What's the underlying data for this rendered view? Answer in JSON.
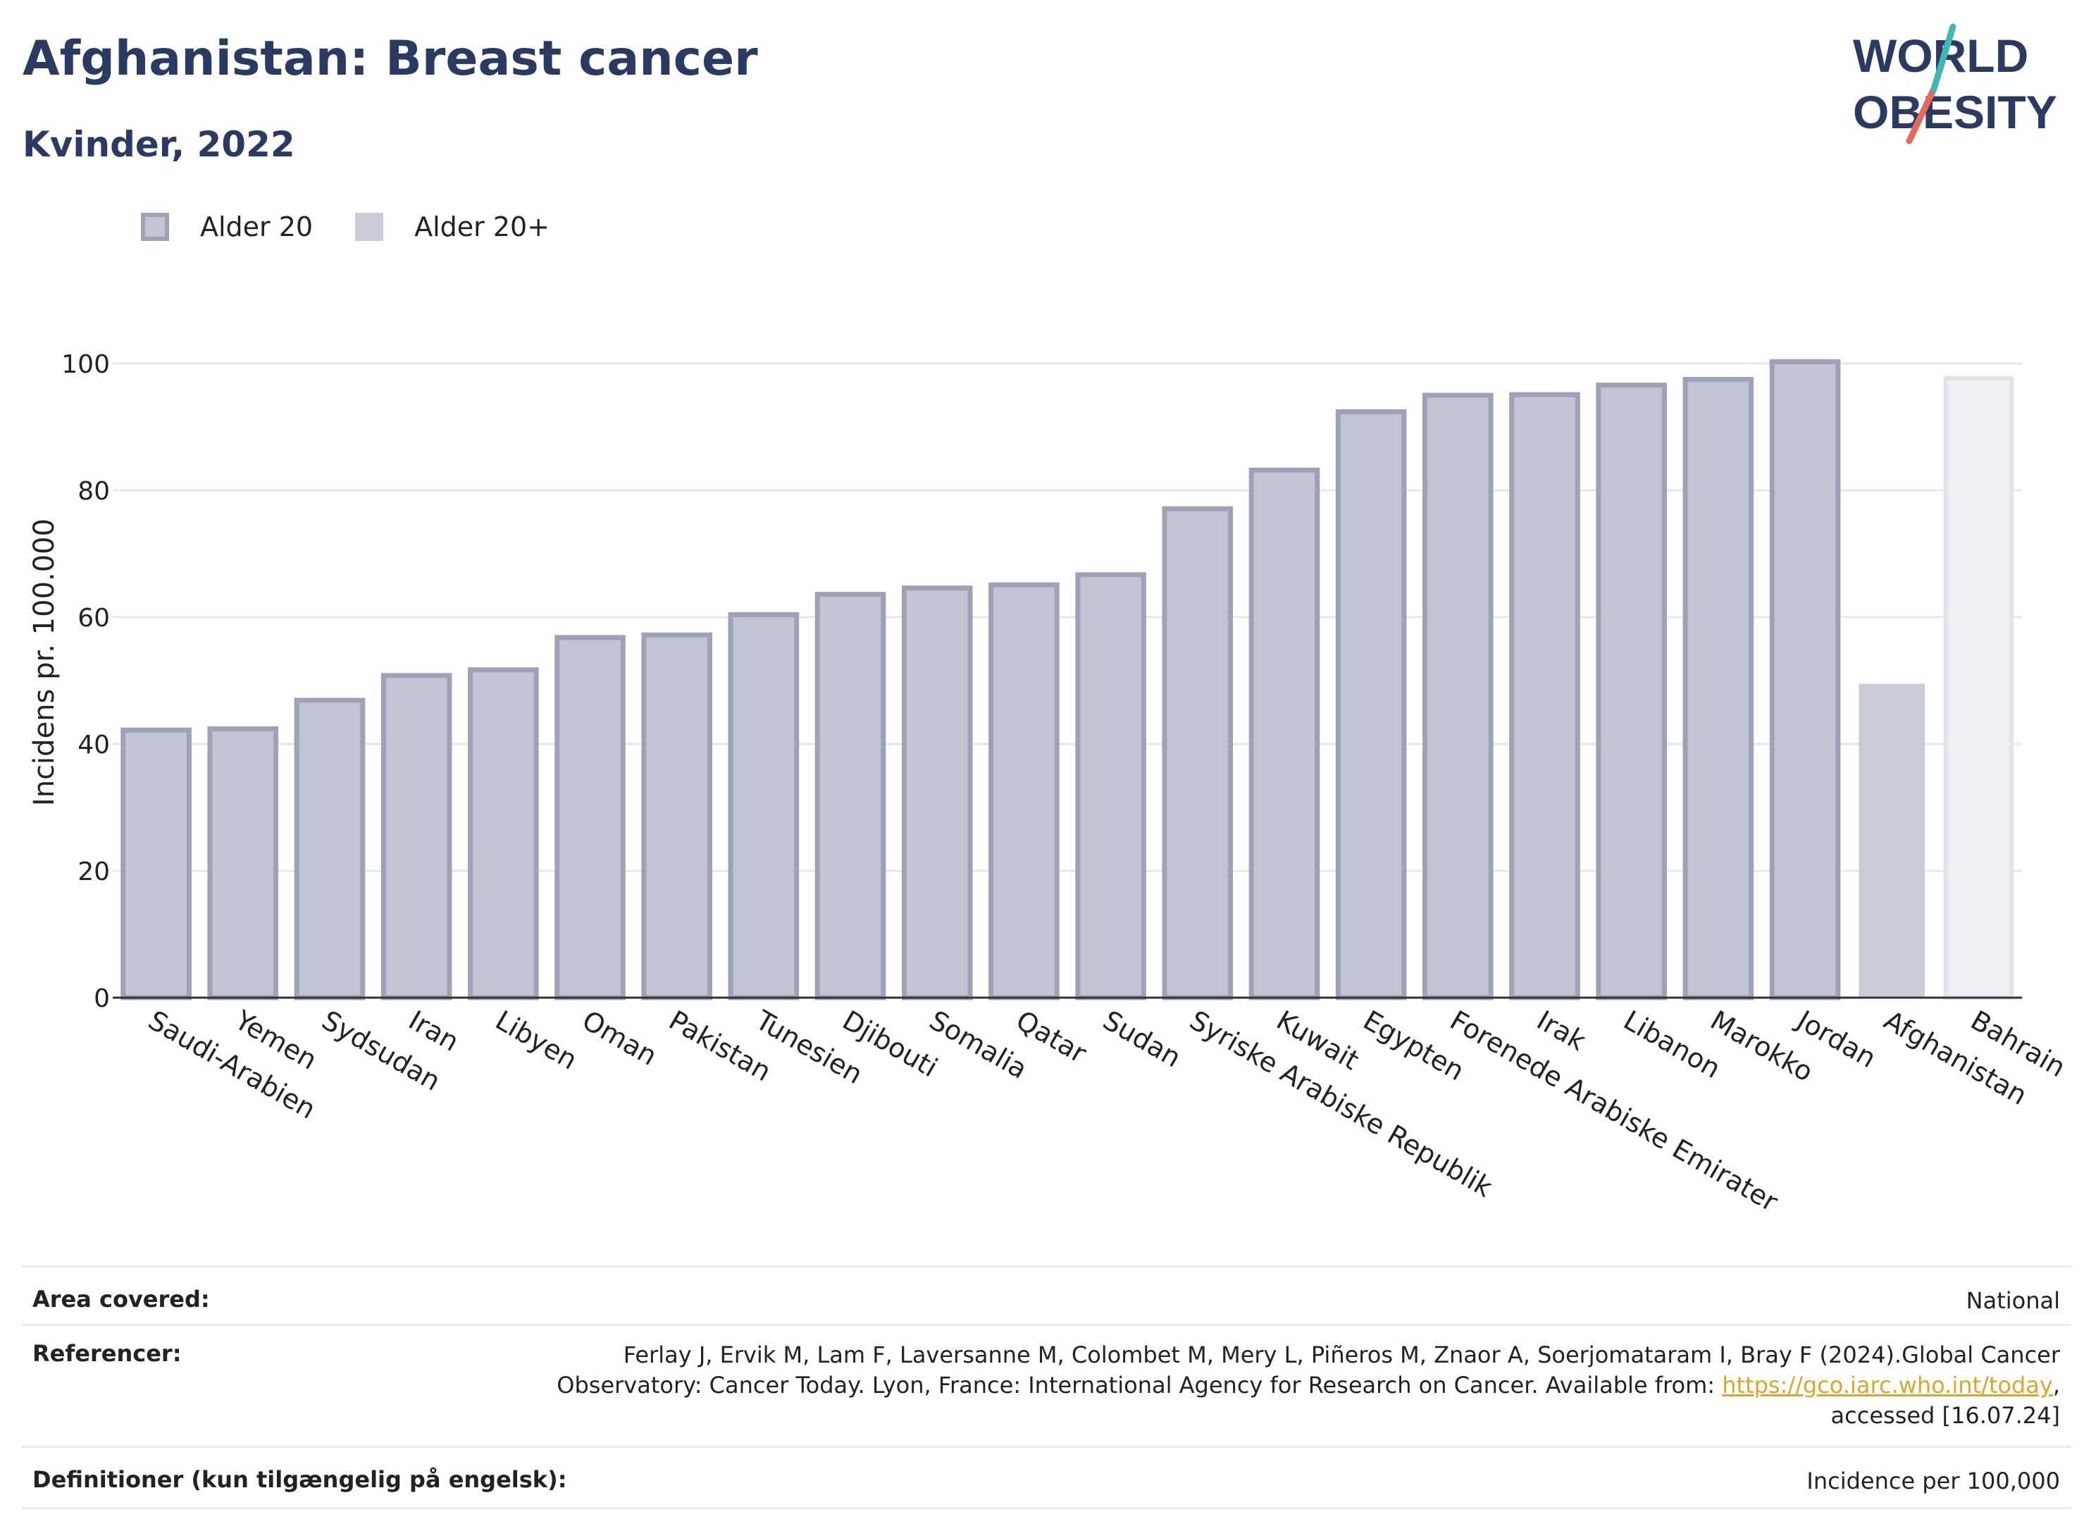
{
  "header": {
    "title": "Afghanistan: Breast cancer",
    "subtitle": "Kvinder, 2022"
  },
  "logo": {
    "line1": "WORLD",
    "line2": "OBESITY"
  },
  "legend": [
    {
      "label": "Alder 20",
      "color": "#c1c4d3"
    },
    {
      "label": "Alder 20+",
      "color": "#c9cbd8"
    }
  ],
  "chart_data": {
    "type": "bar",
    "ylabel": "Incidens pr. 100.000",
    "ylim": [
      0,
      110
    ],
    "yticks": [
      0,
      20,
      40,
      60,
      80,
      100
    ],
    "grid": true,
    "legend_position": "top-left",
    "categories": [
      "Saudi-Arabien",
      "Yemen",
      "Sydsudan",
      "Iran",
      "Libyen",
      "Oman",
      "Pakistan",
      "Tunesien",
      "Djibouti",
      "Somalia",
      "Qatar",
      "Sudan",
      "Syriske Arabiske Republik",
      "Kuwait",
      "Egypten",
      "Forenede Arabiske Emirater",
      "Irak",
      "Libanon",
      "Marokko",
      "Jordan",
      "Afghanistan",
      "Bahrain"
    ],
    "values": [
      42.2,
      42.4,
      46.9,
      50.8,
      51.7,
      56.8,
      57.2,
      60.4,
      63.6,
      64.6,
      65.1,
      66.7,
      77.1,
      83.2,
      92.4,
      95.0,
      95.1,
      96.6,
      97.5,
      100.3,
      49.5,
      97.7
    ],
    "styles": [
      "a",
      "a",
      "a",
      "a",
      "a",
      "a",
      "a",
      "a",
      "a",
      "a",
      "a",
      "a",
      "a",
      "a",
      "a",
      "a",
      "a",
      "a",
      "a",
      "a",
      "highlight",
      "light"
    ],
    "colors": {
      "a_fill": "#c1c4d3",
      "a_stroke": "#9ea2b7",
      "highlight": "#c9cbd8",
      "light_fill": "#eeeff3",
      "light_stroke": "#e1e3ea",
      "axis": "#333333",
      "grid": "#e8e8ee"
    }
  },
  "info": {
    "area_label": "Area covered:",
    "area_value": "National",
    "ref_label": "Referencer:",
    "ref_text1": "Ferlay J, Ervik M, Lam F, Laversanne M, Colombet M, Mery L, Piñeros M, Znaor A, Soerjomataram I, Bray F (2024).Global Cancer",
    "ref_text2": "Observatory: Cancer Today. Lyon, France: International Agency for Research on Cancer. Available from: ",
    "ref_link": "https://gco.iarc.who.int/today",
    "ref_text3": ",",
    "ref_text4": "accessed [16.07.24]",
    "def_label": "Definitioner (kun tilgængelig på engelsk):",
    "def_value": "Incidence per 100,000"
  }
}
